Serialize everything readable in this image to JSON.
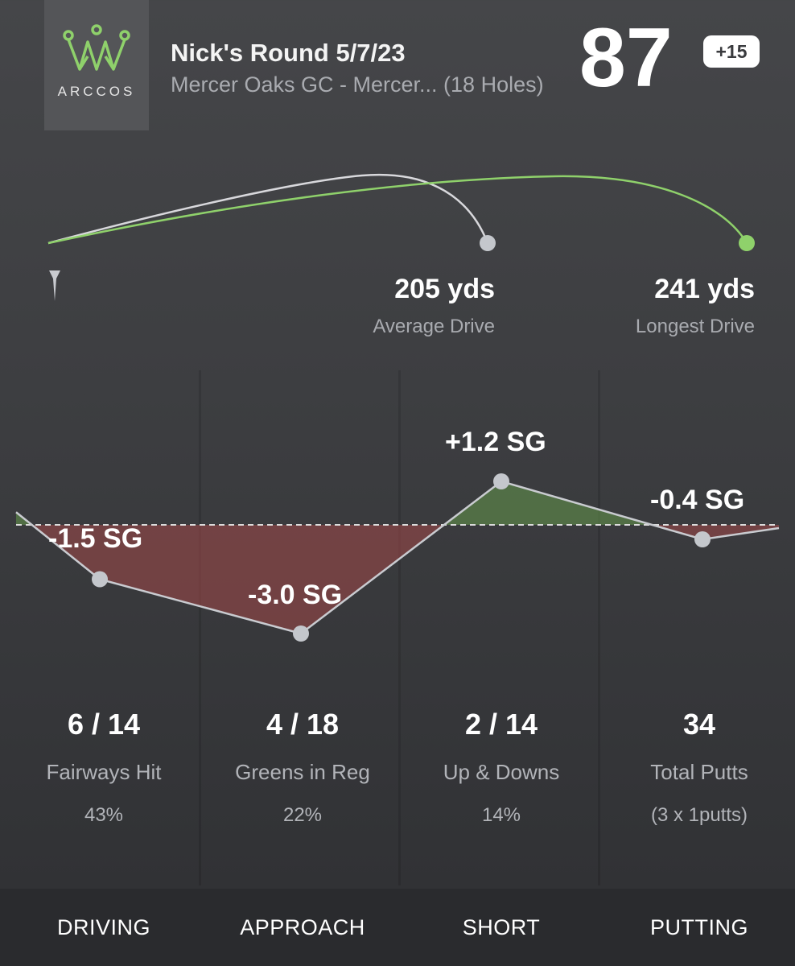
{
  "brand": {
    "name": "ARCCOS"
  },
  "header": {
    "title": "Nick's Round 5/7/23",
    "subtitle": "Mercer Oaks GC - Mercer... (18 Holes)",
    "score": "87",
    "to_par": "+15"
  },
  "drives": {
    "average": {
      "value": "205 yds",
      "label": "Average Drive"
    },
    "longest": {
      "value": "241 yds",
      "label": "Longest Drive"
    }
  },
  "strokes_gained": [
    {
      "category": "DRIVING",
      "sg": "-1.5 SG",
      "value": -1.5
    },
    {
      "category": "APPROACH",
      "sg": "-3.0 SG",
      "value": -3.0
    },
    {
      "category": "SHORT",
      "sg": "+1.2 SG",
      "value": 1.2
    },
    {
      "category": "PUTTING",
      "sg": "-0.4 SG",
      "value": -0.4
    }
  ],
  "stats": [
    {
      "value": "6 / 14",
      "label": "Fairways Hit",
      "detail": "43%"
    },
    {
      "value": "4 / 18",
      "label": "Greens in Reg",
      "detail": "22%"
    },
    {
      "value": "2 / 14",
      "label": "Up & Downs",
      "detail": "14%"
    },
    {
      "value": "34",
      "label": "Total Putts",
      "detail": "(3 x 1putts)"
    }
  ],
  "tabs": [
    "DRIVING",
    "APPROACH",
    "SHORT",
    "PUTTING"
  ],
  "colors": {
    "accent_green": "#8fd16b",
    "average_drive_line": "#d8d8dc",
    "negative_fill": "#a34848",
    "positive_fill": "#5e8a4a",
    "point": "#c4c7cc"
  }
}
